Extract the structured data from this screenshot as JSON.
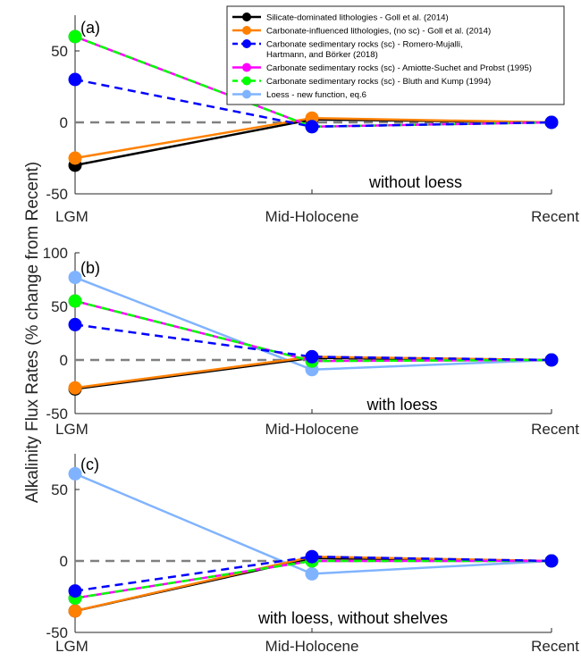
{
  "chart_data": {
    "type": "line",
    "ylabel": "Alkalinity Flux Rates (% change from Recent)",
    "categories": [
      "LGM",
      "Mid-Holocene",
      "Recent"
    ],
    "legend": {
      "placement": "top-right",
      "entries": [
        {
          "lines": [
            "Silicate-dominated lithologies - Goll et al. (2014)"
          ],
          "color": "#000000",
          "dashed": false
        },
        {
          "lines": [
            "Carbonate-influenced lithologies, (no sc) - Goll et al. (2014)"
          ],
          "color": "#ff8000",
          "dashed": false
        },
        {
          "lines": [
            "Carbonate sedimentary rocks (sc) - Romero-Mujalli,",
            "Hartmann, and Börker (2018)"
          ],
          "color": "#0000ff",
          "dashed": true
        },
        {
          "lines": [
            "Carbonate sedimentary rocks (sc) - Amiotte-Suchet and Probst (1995)"
          ],
          "color": "#ff00ff",
          "dashed": false
        },
        {
          "lines": [
            "Carbonate sedimentary rocks (sc) - Bluth and Kump (1994)"
          ],
          "color": "#00ff00",
          "dashed": true
        },
        {
          "lines": [
            "Loess - new function, eq.6"
          ],
          "color": "#80b3ff",
          "dashed": false
        }
      ]
    },
    "panels": [
      {
        "label": "(a)",
        "annotation": "without loess",
        "ylim": [
          -50,
          75
        ],
        "yticks": [
          50,
          0,
          -50
        ],
        "series": [
          {
            "legend_index": 0,
            "color": "#000000",
            "dashed": false,
            "values": [
              -30,
              2,
              0
            ]
          },
          {
            "legend_index": 1,
            "color": "#ff8000",
            "dashed": false,
            "values": [
              -25,
              3,
              0
            ]
          },
          {
            "legend_index": 3,
            "color": "#ff00ff",
            "dashed": false,
            "values": [
              60,
              -3,
              0
            ]
          },
          {
            "legend_index": 4,
            "color": "#00ff00",
            "dashed": true,
            "values": [
              60,
              -3,
              0
            ]
          },
          {
            "legend_index": 2,
            "color": "#0000ff",
            "dashed": true,
            "values": [
              30,
              -3,
              0
            ]
          }
        ]
      },
      {
        "label": "(b)",
        "annotation": "with loess",
        "ylim": [
          -50,
          100
        ],
        "yticks": [
          100,
          50,
          0,
          -50
        ],
        "series": [
          {
            "legend_index": 5,
            "color": "#80b3ff",
            "dashed": false,
            "values": [
              77,
              -9,
              0
            ]
          },
          {
            "legend_index": 0,
            "color": "#000000",
            "dashed": false,
            "values": [
              -27,
              2,
              0
            ]
          },
          {
            "legend_index": 1,
            "color": "#ff8000",
            "dashed": false,
            "values": [
              -26,
              3,
              0
            ]
          },
          {
            "legend_index": 3,
            "color": "#ff00ff",
            "dashed": false,
            "values": [
              55,
              -1,
              0
            ]
          },
          {
            "legend_index": 4,
            "color": "#00ff00",
            "dashed": true,
            "values": [
              55,
              -1,
              0
            ]
          },
          {
            "legend_index": 2,
            "color": "#0000ff",
            "dashed": true,
            "values": [
              33,
              3,
              0
            ]
          }
        ]
      },
      {
        "label": "(c)",
        "annotation": "with loess, without shelves",
        "ylim": [
          -50,
          75
        ],
        "yticks": [
          50,
          0,
          -50
        ],
        "series": [
          {
            "legend_index": 5,
            "color": "#80b3ff",
            "dashed": false,
            "values": [
              61,
              -9,
              0
            ]
          },
          {
            "legend_index": 0,
            "color": "#000000",
            "dashed": false,
            "values": [
              -35,
              2,
              0
            ]
          },
          {
            "legend_index": 1,
            "color": "#ff8000",
            "dashed": false,
            "values": [
              -35,
              3,
              0
            ]
          },
          {
            "legend_index": 3,
            "color": "#ff00ff",
            "dashed": false,
            "values": [
              -26,
              0,
              0
            ]
          },
          {
            "legend_index": 4,
            "color": "#00ff00",
            "dashed": true,
            "values": [
              -26,
              0,
              0
            ]
          },
          {
            "legend_index": 2,
            "color": "#0000ff",
            "dashed": true,
            "values": [
              -21,
              3,
              0
            ]
          }
        ]
      }
    ]
  }
}
